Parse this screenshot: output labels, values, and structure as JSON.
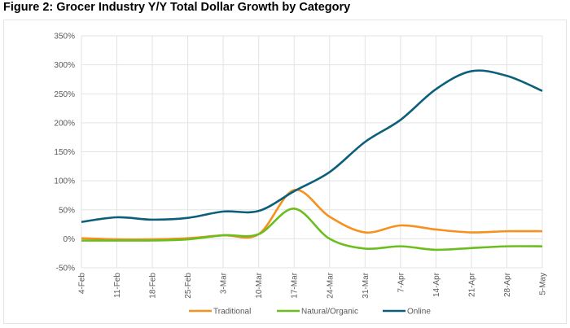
{
  "chart_data": {
    "type": "line",
    "title": "Figure 2: Grocer Industry Y/Y Total Dollar Growth by Category",
    "xlabel": "",
    "ylabel": "",
    "categories": [
      "4-Feb",
      "11-Feb",
      "18-Feb",
      "25-Feb",
      "3-Mar",
      "10-Mar",
      "17-Mar",
      "24-Mar",
      "31-Mar",
      "7-Apr",
      "14-Apr",
      "21-Apr",
      "28-Apr",
      "5-May"
    ],
    "yticks": [
      "-50%",
      "0%",
      "50%",
      "100%",
      "150%",
      "200%",
      "250%",
      "300%",
      "350%"
    ],
    "ylim": [
      -50,
      350
    ],
    "grid": true,
    "legend_position": "bottom",
    "series": [
      {
        "name": "Traditional",
        "color": "#F7901E",
        "values": [
          1,
          -1,
          -1,
          1,
          6,
          8,
          84,
          38,
          11,
          23,
          16,
          11,
          13,
          13
        ]
      },
      {
        "name": "Natural/Organic",
        "color": "#6CBE1F",
        "values": [
          -3,
          -3,
          -3,
          -1,
          6,
          8,
          52,
          0,
          -17,
          -13,
          -19,
          -16,
          -13,
          -13
        ]
      },
      {
        "name": "Online",
        "color": "#0B5F7A",
        "values": [
          29,
          37,
          33,
          36,
          47,
          48,
          82,
          115,
          167,
          205,
          258,
          289,
          281,
          255
        ]
      }
    ]
  }
}
